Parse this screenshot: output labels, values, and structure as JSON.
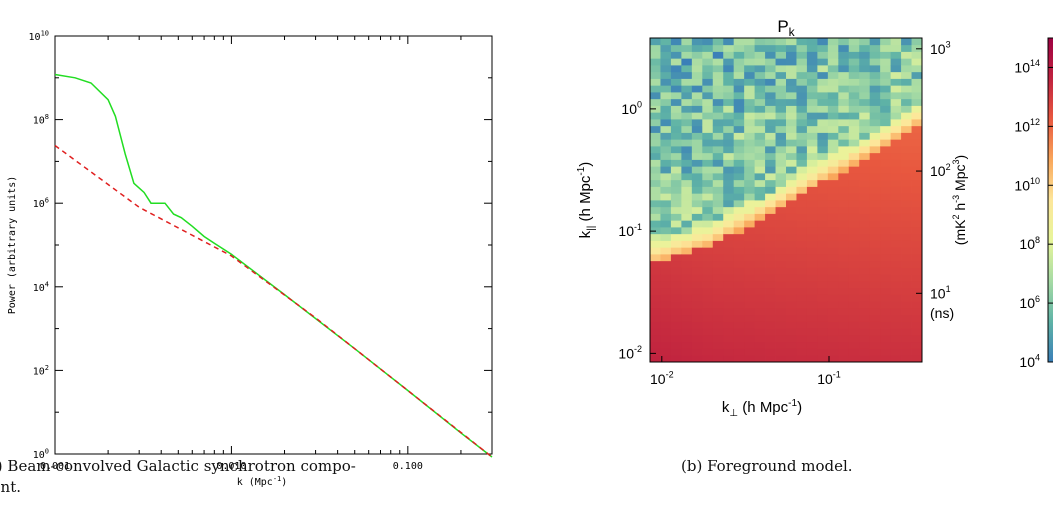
{
  "chart_data": [
    {
      "type": "line",
      "xlabel": "k (Mpc",
      "xlabel_sup": "-1",
      "xlabel_close": ")",
      "ylabel": "Power (arbitrary units)",
      "x_scale": "log",
      "y_scale": "log",
      "xlim": [
        0.001,
        0.3
      ],
      "ylim": [
        1,
        10000000000.0
      ],
      "x_ticks": [
        {
          "value": 0.001,
          "label": "0.001"
        },
        {
          "value": 0.01,
          "label": "0.010"
        },
        {
          "value": 0.1,
          "label": "0.100"
        }
      ],
      "y_ticks": [
        {
          "value": 1,
          "base": "10",
          "exp": "0"
        },
        {
          "value": 100,
          "base": "10",
          "exp": "2"
        },
        {
          "value": 10000,
          "base": "10",
          "exp": "4"
        },
        {
          "value": 1000000,
          "base": "10",
          "exp": "6"
        },
        {
          "value": 100000000,
          "base": "10",
          "exp": "8"
        },
        {
          "value": 10000000000,
          "base": "10",
          "exp": "10"
        }
      ],
      "series": [
        {
          "color": "#22dd22",
          "style": "solid",
          "points": [
            [
              0.001,
              1200000000.0
            ],
            [
              0.0013,
              1000000000.0
            ],
            [
              0.0016,
              750000000.0
            ],
            [
              0.002,
              300000000.0
            ],
            [
              0.0022,
              120000000.0
            ],
            [
              0.0025,
              15000000.0
            ],
            [
              0.0028,
              3000000.0
            ],
            [
              0.0032,
              1800000.0
            ],
            [
              0.0035,
              1000000.0
            ],
            [
              0.0042,
              1000000.0
            ],
            [
              0.0047,
              550000.0
            ],
            [
              0.0052,
              450000.0
            ],
            [
              0.006,
              280000.0
            ],
            [
              0.007,
              160000.0
            ],
            [
              0.008,
              110000.0
            ],
            [
              0.01,
              60000.0
            ],
            [
              0.02,
              6500.0
            ],
            [
              0.05,
              330
            ],
            [
              0.1,
              33
            ],
            [
              0.2,
              3.2
            ],
            [
              0.3,
              0.85
            ]
          ]
        },
        {
          "color": "#e02020",
          "style": "dashed",
          "points": [
            [
              0.001,
              24000000.0
            ],
            [
              0.003,
              800000.0
            ],
            [
              0.01,
              55000.0
            ],
            [
              0.03,
              1800.0
            ],
            [
              0.1,
              33
            ],
            [
              0.3,
              0.85
            ]
          ]
        }
      ]
    },
    {
      "type": "heatmap",
      "title": "P",
      "title_sub": "k",
      "xlabel": "k",
      "xlabel_sub": "⊥",
      "xlabel_rest": " (h Mpc",
      "xlabel_sup": "-1",
      "xlabel_close": ")",
      "ylabel": "k",
      "ylabel_sub": "||",
      "ylabel_rest": " (h Mpc",
      "ylabel_sup": "-1",
      "ylabel_close": ")",
      "x_scale": "log",
      "y_scale": "log",
      "xlim": [
        0.0085,
        0.36
      ],
      "ylim": [
        0.0085,
        3.8
      ],
      "x_ticks": [
        {
          "value": 0.01,
          "base": "10",
          "exp": "-2"
        },
        {
          "value": 0.1,
          "base": "10",
          "exp": "-1"
        }
      ],
      "y_ticks": [
        {
          "value": 0.01,
          "base": "10",
          "exp": "-2"
        },
        {
          "value": 0.1,
          "base": "10",
          "exp": "-1"
        },
        {
          "value": 1,
          "base": "10",
          "exp": "0"
        }
      ],
      "right_axis_ticks": [
        {
          "value": 3.1,
          "base": "10",
          "exp": "3"
        },
        {
          "value": 0.31,
          "base": "10",
          "exp": "2"
        },
        {
          "value": 0.031,
          "base": "10",
          "exp": "1"
        }
      ],
      "right_axis_unit": "(ns)",
      "wedge_boundary": [
        [
          0.0085,
          0.07
        ],
        [
          0.02,
          0.1
        ],
        [
          0.05,
          0.2
        ],
        [
          0.1,
          0.35
        ],
        [
          0.2,
          0.6
        ],
        [
          0.36,
          1.0
        ]
      ],
      "colorbar": {
        "label_parts": [
          "(mK",
          "2",
          " h",
          "-3",
          " Mpc",
          "3",
          ")"
        ],
        "range": [
          10000,
          1000000000000000.0
        ],
        "scale": "log",
        "ticks": [
          {
            "value": 10000,
            "base": "10",
            "exp": "4"
          },
          {
            "value": 1000000,
            "base": "10",
            "exp": "6"
          },
          {
            "value": 100000000,
            "base": "10",
            "exp": "8"
          },
          {
            "value": 10000000000,
            "base": "10",
            "exp": "10"
          },
          {
            "value": 1000000000000,
            "base": "10",
            "exp": "12"
          },
          {
            "value": 100000000000000,
            "base": "10",
            "exp": "14"
          }
        ],
        "colors": [
          "#3a7fb8",
          "#5fb3a6",
          "#a6dba4",
          "#e7f59a",
          "#fde69a",
          "#f9a65a",
          "#e8583f",
          "#c0223f",
          "#9e0142"
        ]
      }
    }
  ],
  "captions": {
    "a": "(a) Beam-convolved Galactic synchrotron compo-",
    "a_line2": "nent.",
    "b": "(b) Foreground model."
  }
}
